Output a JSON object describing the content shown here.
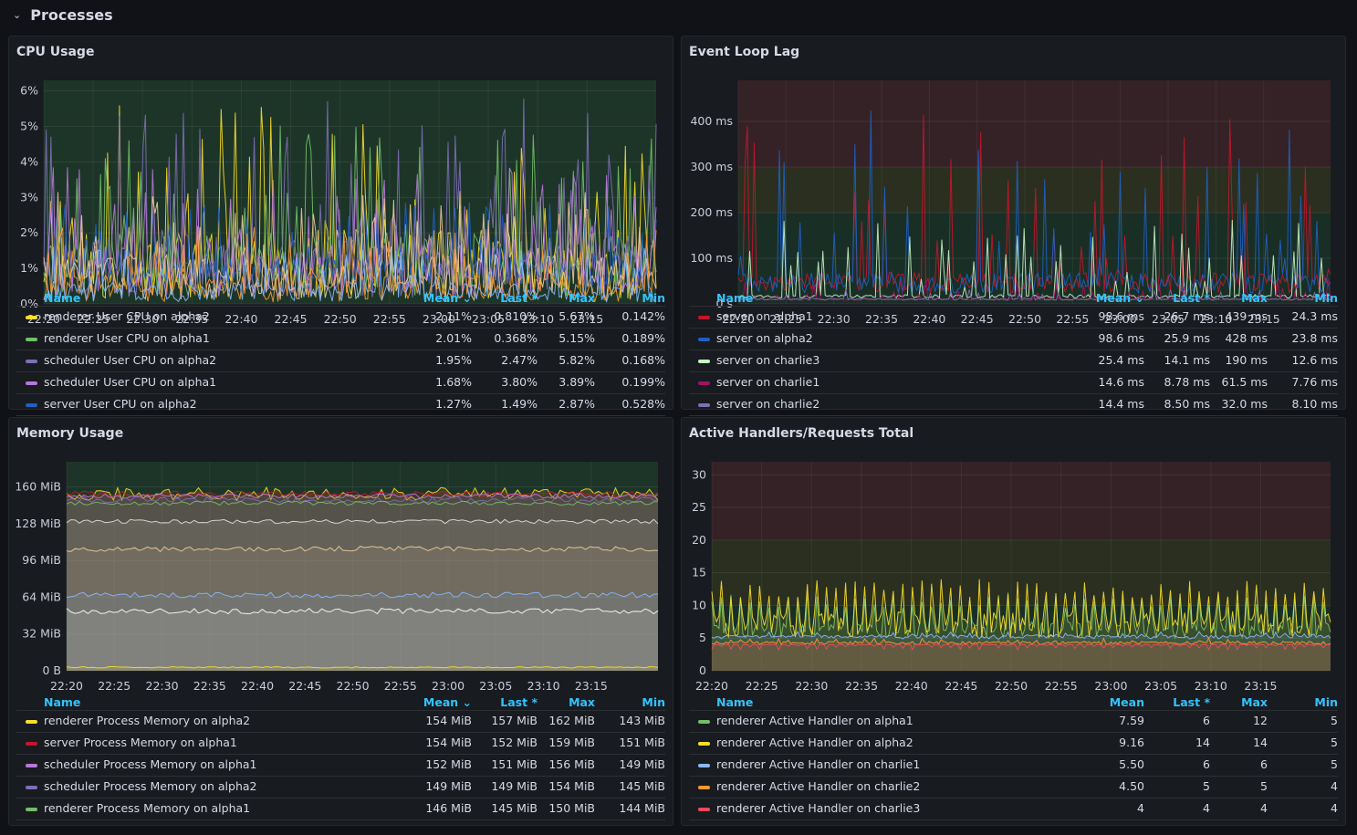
{
  "row": {
    "title": "Processes"
  },
  "panels": [
    {
      "id": "cpu",
      "title": "CPU Usage",
      "columns": {
        "name": "Name",
        "mean": "Mean ⌄",
        "last": "Last *",
        "max": "Max",
        "min": "Min"
      },
      "chart_data": {
        "type": "line",
        "title": "CPU Usage",
        "y_ticks": [
          "0%",
          "1%",
          "2%",
          "3%",
          "4%",
          "5%",
          "6%"
        ],
        "ylim": [
          0,
          6.3
        ],
        "x_ticks": [
          "22:20",
          "22:25",
          "22:30",
          "22:35",
          "22:40",
          "22:45",
          "22:50",
          "22:55",
          "23:00",
          "23:05",
          "23:10",
          "23:15"
        ],
        "background_bands": [
          {
            "from": 0,
            "to": 6.3,
            "color": "#1e3a2a"
          }
        ],
        "series": [
          {
            "name": "renderer User CPU on alpha2",
            "color": "#fade2a",
            "mean": 2.11,
            "max": 5.67,
            "min": 0.142
          },
          {
            "name": "renderer User CPU on alpha1",
            "color": "#73bf69",
            "mean": 2.01,
            "max": 5.15,
            "min": 0.189
          },
          {
            "name": "scheduler User CPU on alpha2",
            "color": "#806eb7",
            "mean": 1.95,
            "max": 5.82,
            "min": 0.168
          },
          {
            "name": "scheduler User CPU on alpha1",
            "color": "#b877d9",
            "mean": 1.68,
            "max": 3.89,
            "min": 0.199
          },
          {
            "name": "server User CPU on alpha2",
            "color": "#1f60c4",
            "mean": 1.27,
            "max": 2.87,
            "min": 0.528
          },
          {
            "name": "",
            "color": "#f2cc9c",
            "mean": 1.4,
            "max": 3.2,
            "min": 0.1
          },
          {
            "name": "",
            "color": "#ff9830",
            "mean": 0.8,
            "max": 2.2,
            "min": 0.05
          },
          {
            "name": "",
            "color": "#8ab8ff",
            "mean": 0.6,
            "max": 1.6,
            "min": 0.05
          }
        ]
      },
      "rows": [
        {
          "name": "renderer User CPU on alpha2",
          "color": "#fade2a",
          "mean": "2.11%",
          "last": "0.810%",
          "max": "5.67%",
          "min": "0.142%"
        },
        {
          "name": "renderer User CPU on alpha1",
          "color": "#73bf69",
          "mean": "2.01%",
          "last": "0.368%",
          "max": "5.15%",
          "min": "0.189%"
        },
        {
          "name": "scheduler User CPU on alpha2",
          "color": "#806eb7",
          "mean": "1.95%",
          "last": "2.47%",
          "max": "5.82%",
          "min": "0.168%"
        },
        {
          "name": "scheduler User CPU on alpha1",
          "color": "#b877d9",
          "mean": "1.68%",
          "last": "3.80%",
          "max": "3.89%",
          "min": "0.199%"
        },
        {
          "name": "server User CPU on alpha2",
          "color": "#1f60c4",
          "mean": "1.27%",
          "last": "1.49%",
          "max": "2.87%",
          "min": "0.528%"
        }
      ]
    },
    {
      "id": "lag",
      "title": "Event Loop Lag",
      "columns": {
        "name": "Name",
        "mean": "Mean ⌄",
        "last": "Last *",
        "max": "Max",
        "min": "Min"
      },
      "chart_data": {
        "type": "line",
        "title": "Event Loop Lag",
        "y_ticks": [
          "0 s",
          "100 ms",
          "200 ms",
          "300 ms",
          "400 ms"
        ],
        "ylim": [
          0,
          490
        ],
        "x_ticks": [
          "22:20",
          "22:25",
          "22:30",
          "22:35",
          "22:40",
          "22:45",
          "22:50",
          "22:55",
          "23:00",
          "23:05",
          "23:10",
          "23:15"
        ],
        "background_bands": [
          {
            "from": 0,
            "to": 200,
            "color": "#1a3328"
          },
          {
            "from": 200,
            "to": 300,
            "color": "#2e3320"
          },
          {
            "from": 300,
            "to": 490,
            "color": "#3a2328"
          }
        ],
        "series": [
          {
            "name": "server on alpha1",
            "color": "#c4162a",
            "mean": 98.6,
            "max": 439,
            "min": 24.3
          },
          {
            "name": "server on alpha2",
            "color": "#1f60c4",
            "mean": 98.6,
            "max": 428,
            "min": 23.8
          },
          {
            "name": "server on charlie3",
            "color": "#c8f2c2",
            "mean": 25.4,
            "max": 190,
            "min": 12.6
          },
          {
            "name": "server on charlie1",
            "color": "#a3125f",
            "mean": 14.6,
            "max": 61.5,
            "min": 7.76
          },
          {
            "name": "server on charlie2",
            "color": "#806eb7",
            "mean": 14.4,
            "max": 32.0,
            "min": 8.1
          }
        ]
      },
      "rows": [
        {
          "name": "server on alpha1",
          "color": "#c4162a",
          "mean": "98.6 ms",
          "last": "26.7 ms",
          "max": "439 ms",
          "min": "24.3 ms"
        },
        {
          "name": "server on alpha2",
          "color": "#1f60c4",
          "mean": "98.6 ms",
          "last": "25.9 ms",
          "max": "428 ms",
          "min": "23.8 ms"
        },
        {
          "name": "server on charlie3",
          "color": "#c8f2c2",
          "mean": "25.4 ms",
          "last": "14.1 ms",
          "max": "190 ms",
          "min": "12.6 ms"
        },
        {
          "name": "server on charlie1",
          "color": "#a3125f",
          "mean": "14.6 ms",
          "last": "8.78 ms",
          "max": "61.5 ms",
          "min": "7.76 ms"
        },
        {
          "name": "server on charlie2",
          "color": "#806eb7",
          "mean": "14.4 ms",
          "last": "8.50 ms",
          "max": "32.0 ms",
          "min": "8.10 ms"
        }
      ]
    },
    {
      "id": "mem",
      "title": "Memory Usage",
      "columns": {
        "name": "Name",
        "mean": "Mean ⌄",
        "last": "Last *",
        "max": "Max",
        "min": "Min"
      },
      "chart_data": {
        "type": "area",
        "title": "Memory Usage",
        "y_ticks": [
          "0 B",
          "32 MiB",
          "64 MiB",
          "96 MiB",
          "128 MiB",
          "160 MiB"
        ],
        "ylim": [
          0,
          182
        ],
        "x_ticks": [
          "22:20",
          "22:25",
          "22:30",
          "22:35",
          "22:40",
          "22:45",
          "22:50",
          "22:55",
          "23:00",
          "23:05",
          "23:10",
          "23:15"
        ],
        "background_bands": [
          {
            "from": 0,
            "to": 182,
            "color": "#1e3a2a"
          }
        ],
        "series": [
          {
            "name": "renderer Process Memory on alpha2",
            "color": "#fade2a",
            "mean": 154,
            "max": 162,
            "min": 143
          },
          {
            "name": "server Process Memory on alpha1",
            "color": "#c4162a",
            "mean": 154,
            "max": 159,
            "min": 151
          },
          {
            "name": "scheduler Process Memory on alpha1",
            "color": "#b877d9",
            "mean": 152,
            "max": 156,
            "min": 149
          },
          {
            "name": "scheduler Process Memory on alpha2",
            "color": "#806eb7",
            "mean": 149,
            "max": 154,
            "min": 145
          },
          {
            "name": "renderer Process Memory on alpha1",
            "color": "#73bf69",
            "mean": 146,
            "max": 150,
            "min": 144
          },
          {
            "name": "",
            "color": "#e0e0e0",
            "mean": 130,
            "max": 134,
            "min": 128
          },
          {
            "name": "",
            "color": "#f2cc9c",
            "mean": 106,
            "max": 110,
            "min": 102
          },
          {
            "name": "",
            "color": "#8ab8ff",
            "mean": 66,
            "max": 70,
            "min": 62
          },
          {
            "name": "",
            "color": "#ffffff",
            "mean": 52,
            "max": 56,
            "min": 48
          },
          {
            "name": "",
            "color": "#fade2a",
            "mean": 3,
            "max": 4,
            "min": 2
          }
        ]
      },
      "rows": [
        {
          "name": "renderer Process Memory on alpha2",
          "color": "#fade2a",
          "mean": "154 MiB",
          "last": "157 MiB",
          "max": "162 MiB",
          "min": "143 MiB"
        },
        {
          "name": "server Process Memory on alpha1",
          "color": "#c4162a",
          "mean": "154 MiB",
          "last": "152 MiB",
          "max": "159 MiB",
          "min": "151 MiB"
        },
        {
          "name": "scheduler Process Memory on alpha1",
          "color": "#b877d9",
          "mean": "152 MiB",
          "last": "151 MiB",
          "max": "156 MiB",
          "min": "149 MiB"
        },
        {
          "name": "scheduler Process Memory on alpha2",
          "color": "#806eb7",
          "mean": "149 MiB",
          "last": "149 MiB",
          "max": "154 MiB",
          "min": "145 MiB"
        },
        {
          "name": "renderer Process Memory on alpha1",
          "color": "#73bf69",
          "mean": "146 MiB",
          "last": "145 MiB",
          "max": "150 MiB",
          "min": "144 MiB"
        }
      ]
    },
    {
      "id": "handlers",
      "title": "Active Handlers/Requests Total",
      "columns": {
        "name": "Name",
        "mean": "Mean",
        "last": "Last *",
        "max": "Max",
        "min": "Min"
      },
      "chart_data": {
        "type": "area",
        "title": "Active Handlers/Requests Total",
        "y_ticks": [
          "0",
          "5",
          "10",
          "15",
          "20",
          "25",
          "30"
        ],
        "ylim": [
          0,
          32
        ],
        "x_ticks": [
          "22:20",
          "22:25",
          "22:30",
          "22:35",
          "22:40",
          "22:45",
          "22:50",
          "22:55",
          "23:00",
          "23:05",
          "23:10",
          "23:15"
        ],
        "background_bands": [
          {
            "from": 0,
            "to": 10,
            "color": "#1a3328"
          },
          {
            "from": 10,
            "to": 20,
            "color": "#2e3320"
          },
          {
            "from": 20,
            "to": 32,
            "color": "#3a2328"
          }
        ],
        "series": [
          {
            "name": "renderer Active Handler on alpha1",
            "color": "#73bf69",
            "mean": 7.59,
            "max": 12,
            "min": 5
          },
          {
            "name": "renderer Active Handler on alpha2",
            "color": "#fade2a",
            "mean": 9.16,
            "max": 14,
            "min": 5
          },
          {
            "name": "renderer Active Handler on charlie1",
            "color": "#8ab8ff",
            "mean": 5.5,
            "max": 6,
            "min": 5
          },
          {
            "name": "renderer Active Handler on charlie2",
            "color": "#ff9830",
            "mean": 4.5,
            "max": 5,
            "min": 4
          },
          {
            "name": "renderer Active Handler on charlie3",
            "color": "#f2495c",
            "mean": 4,
            "max": 4,
            "min": 4
          }
        ]
      },
      "rows": [
        {
          "name": "renderer Active Handler on alpha1",
          "color": "#73bf69",
          "mean": "7.59",
          "last": "6",
          "max": "12",
          "min": "5"
        },
        {
          "name": "renderer Active Handler on alpha2",
          "color": "#fade2a",
          "mean": "9.16",
          "last": "14",
          "max": "14",
          "min": "5"
        },
        {
          "name": "renderer Active Handler on charlie1",
          "color": "#8ab8ff",
          "mean": "5.50",
          "last": "6",
          "max": "6",
          "min": "5"
        },
        {
          "name": "renderer Active Handler on charlie2",
          "color": "#ff9830",
          "mean": "4.50",
          "last": "5",
          "max": "5",
          "min": "4"
        },
        {
          "name": "renderer Active Handler on charlie3",
          "color": "#f2495c",
          "mean": "4",
          "max": "4",
          "last": "4",
          "min": "4"
        }
      ]
    }
  ]
}
